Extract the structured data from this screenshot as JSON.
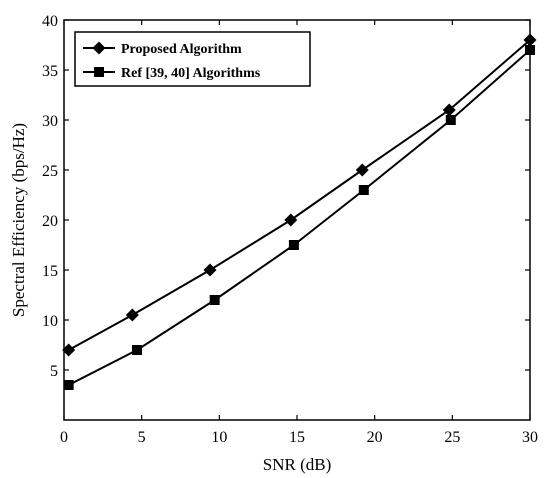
{
  "chart_data": {
    "type": "line",
    "xlabel": "SNR (dB)",
    "ylabel": "Spectral Efficiency (bps/Hz)",
    "xlim": [
      0,
      30
    ],
    "ylim": [
      0,
      40
    ],
    "x_ticks": [
      0,
      5,
      10,
      15,
      20,
      25,
      30
    ],
    "x_tick_labels": [
      "0",
      "5",
      "10",
      "15",
      "20",
      "25",
      "30"
    ],
    "y_ticks": [
      5,
      10,
      15,
      20,
      25,
      30,
      35,
      40
    ],
    "y_tick_labels": [
      "5",
      "10",
      "15",
      "20",
      "25",
      "30",
      "35",
      "40"
    ],
    "grid": false,
    "legend_position": "top-left",
    "series": [
      {
        "name": "Proposed Algorithm",
        "marker": "diamond",
        "color": "#000000",
        "x": [
          0.3,
          4.4,
          9.4,
          14.6,
          19.2,
          24.8,
          30
        ],
        "y": [
          7.0,
          10.5,
          15.0,
          20.0,
          25.0,
          31.0,
          38.0
        ]
      },
      {
        "name": "Ref [39, 40] Algorithms",
        "marker": "square",
        "color": "#000000",
        "x": [
          0.3,
          4.7,
          9.7,
          14.8,
          19.3,
          24.9,
          30
        ],
        "y": [
          3.5,
          7.0,
          12.0,
          17.5,
          23.0,
          30.0,
          37.0
        ]
      }
    ]
  }
}
